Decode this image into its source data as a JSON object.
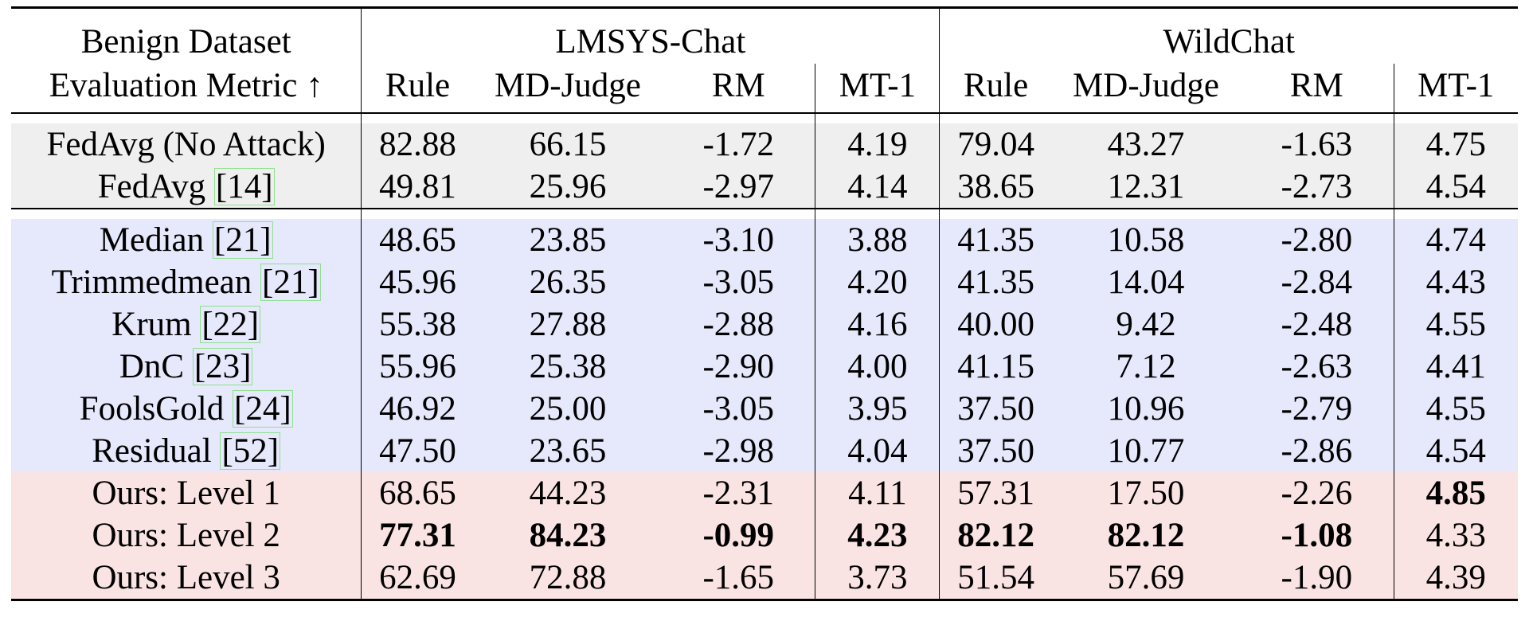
{
  "header": {
    "left_top": "Benign Dataset",
    "left_bottom": "Evaluation Metric ↑",
    "datasets": [
      "LMSYS-Chat",
      "WildChat"
    ],
    "metrics": [
      "Rule",
      "MD-Judge",
      "RM",
      "MT-1"
    ]
  },
  "groups": [
    {
      "name": "baseline",
      "rows": [
        {
          "method": "FedAvg (No Attack)",
          "cite": "",
          "values": [
            "82.88",
            "66.15",
            "-1.72",
            "4.19",
            "79.04",
            "43.27",
            "-1.63",
            "4.75"
          ],
          "bold": []
        },
        {
          "method": "FedAvg ",
          "cite": "[14]",
          "values": [
            "49.81",
            "25.96",
            "-2.97",
            "4.14",
            "38.65",
            "12.31",
            "-2.73",
            "4.54"
          ],
          "bold": []
        }
      ]
    },
    {
      "name": "defenses",
      "rows": [
        {
          "method": "Median ",
          "cite": "[21]",
          "values": [
            "48.65",
            "23.85",
            "-3.10",
            "3.88",
            "41.35",
            "10.58",
            "-2.80",
            "4.74"
          ],
          "bold": []
        },
        {
          "method": "Trimmedmean ",
          "cite": "[21]",
          "values": [
            "45.96",
            "26.35",
            "-3.05",
            "4.20",
            "41.35",
            "14.04",
            "-2.84",
            "4.43"
          ],
          "bold": []
        },
        {
          "method": "Krum ",
          "cite": "[22]",
          "values": [
            "55.38",
            "27.88",
            "-2.88",
            "4.16",
            "40.00",
            "9.42",
            "-2.48",
            "4.55"
          ],
          "bold": []
        },
        {
          "method": "DnC ",
          "cite": "[23]",
          "values": [
            "55.96",
            "25.38",
            "-2.90",
            "4.00",
            "41.15",
            "7.12",
            "-2.63",
            "4.41"
          ],
          "bold": []
        },
        {
          "method": "FoolsGold ",
          "cite": "[24]",
          "values": [
            "46.92",
            "25.00",
            "-3.05",
            "3.95",
            "37.50",
            "10.96",
            "-2.79",
            "4.55"
          ],
          "bold": []
        },
        {
          "method": "Residual ",
          "cite": "[52]",
          "values": [
            "47.50",
            "23.65",
            "-2.98",
            "4.04",
            "37.50",
            "10.77",
            "-2.86",
            "4.54"
          ],
          "bold": []
        }
      ]
    },
    {
      "name": "ours",
      "rows": [
        {
          "method": "Ours: Level 1",
          "cite": "",
          "values": [
            "68.65",
            "44.23",
            "-2.31",
            "4.11",
            "57.31",
            "17.50",
            "-2.26",
            "4.85"
          ],
          "bold": [
            7
          ]
        },
        {
          "method": "Ours: Level 2",
          "cite": "",
          "values": [
            "77.31",
            "84.23",
            "-0.99",
            "4.23",
            "82.12",
            "82.12",
            "-1.08",
            "4.33"
          ],
          "bold": [
            0,
            1,
            2,
            3,
            4,
            5,
            6
          ]
        },
        {
          "method": "Ours: Level 3",
          "cite": "",
          "values": [
            "62.69",
            "72.88",
            "-1.65",
            "3.73",
            "51.54",
            "57.69",
            "-1.90",
            "4.39"
          ],
          "bold": []
        }
      ]
    }
  ]
}
